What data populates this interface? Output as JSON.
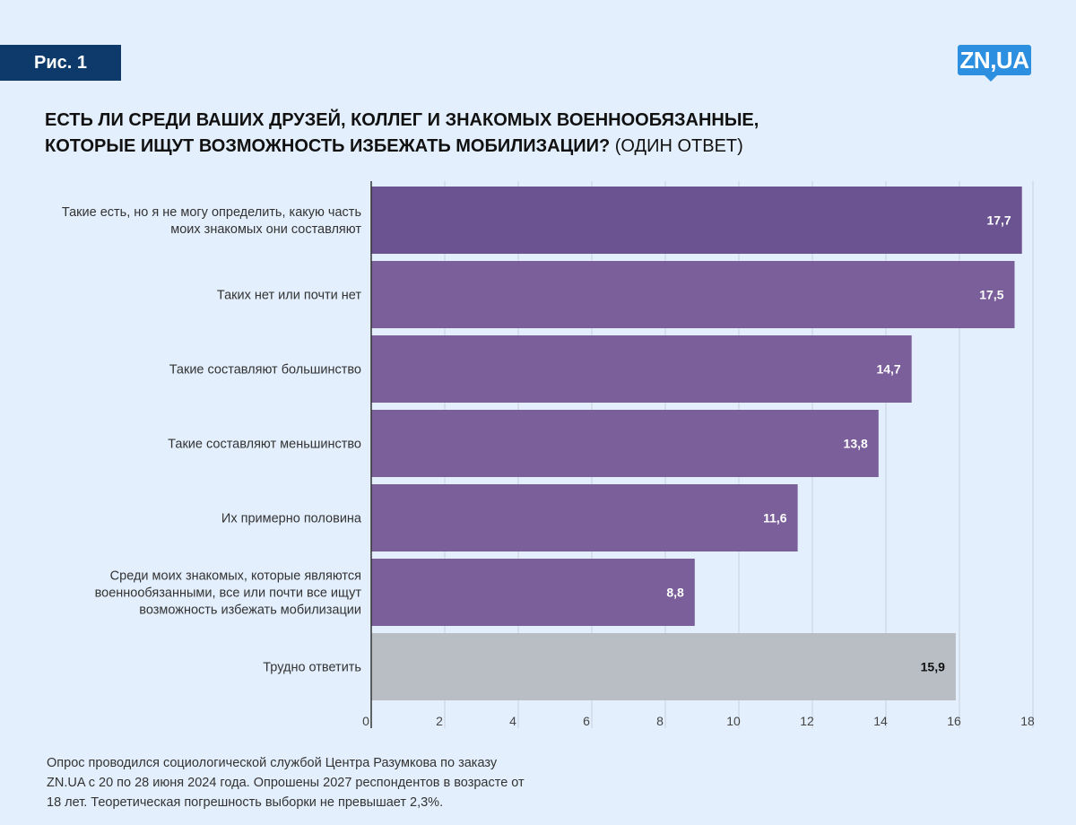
{
  "header": {
    "figure_label": "Рис. 1",
    "logo_text": "ZN,UA"
  },
  "title": {
    "strong_line1": "ЕСТЬ ЛИ СРЕДИ ВАШИХ ДРУЗЕЙ, КОЛЛЕГ И ЗНАКОМЫХ ВОЕННООБЯЗАННЫЕ,",
    "strong_line2": "КОТОРЫЕ ИЩУТ ВОЗМОЖНОСТЬ ИЗБЕЖАТЬ МОБИЛИЗАЦИИ?",
    "suffix": "(ОДИН ОТВЕТ)"
  },
  "chart_data": {
    "type": "bar",
    "orientation": "horizontal",
    "categories": [
      [
        "Такие есть, но я не могу определить, какую часть",
        "моих знакомых они составляют"
      ],
      [
        "Таких нет или почти нет"
      ],
      [
        "Такие составляют большинство"
      ],
      [
        "Такие составляют меньшинство"
      ],
      [
        "Их примерно половина"
      ],
      [
        "Среди моих знакомых, которые являются",
        "военнообязанными, все или почти все ищут",
        "возможность избежать мобилизации"
      ],
      [
        "Трудно ответить"
      ]
    ],
    "values": [
      17.7,
      17.5,
      14.7,
      13.8,
      11.6,
      8.8,
      15.9
    ],
    "value_labels": [
      "17,7",
      "17,5",
      "14,7",
      "13,8",
      "11,6",
      "8,8",
      "15,9"
    ],
    "bar_colors": [
      "#6b5290",
      "#7a5f9a",
      "#7a5f9a",
      "#7a5f9a",
      "#7a5f9a",
      "#7a5f9a",
      "#b9bec5"
    ],
    "label_colors": [
      "#ffffff",
      "#ffffff",
      "#ffffff",
      "#ffffff",
      "#ffffff",
      "#ffffff",
      "#111111"
    ],
    "xlim": [
      0,
      18
    ],
    "xticks": [
      0,
      2,
      4,
      6,
      8,
      10,
      12,
      14,
      16,
      18
    ],
    "grid": true
  },
  "footnote": {
    "lines": [
      "Опрос проводился социологической службой Центра Разумкова по заказу",
      "ZN.UA с 20 по 28 июня 2024 года. Опрошены 2027 респондентов в возрасте от",
      "18 лет. Теоретическая погрешность выборки не превышает 2,3%."
    ]
  }
}
